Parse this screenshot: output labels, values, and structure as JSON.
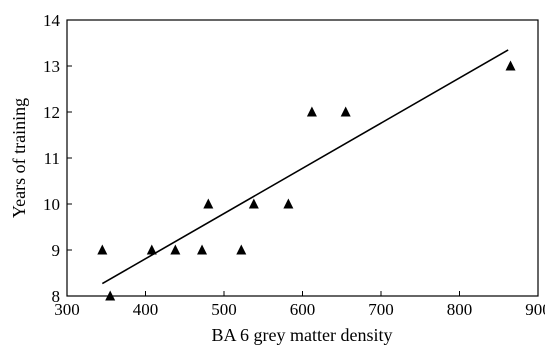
{
  "chart_data": {
    "type": "scatter",
    "title": "",
    "xlabel": "BA 6 grey matter density",
    "ylabel": "Years of training",
    "xlim": [
      300,
      900
    ],
    "ylim": [
      8,
      14
    ],
    "xticks": [
      300,
      400,
      500,
      600,
      700,
      800,
      900
    ],
    "yticks": [
      8,
      9,
      10,
      11,
      12,
      13,
      14
    ],
    "grid": false,
    "legend": "none",
    "marker": "triangle",
    "colors": {
      "marker": "#000000",
      "line": "#000000",
      "axis": "#000000"
    },
    "series": [
      {
        "points": [
          {
            "x": 345,
            "y": 9
          },
          {
            "x": 355,
            "y": 8
          },
          {
            "x": 408,
            "y": 9
          },
          {
            "x": 438,
            "y": 9
          },
          {
            "x": 472,
            "y": 9
          },
          {
            "x": 480,
            "y": 10
          },
          {
            "x": 522,
            "y": 9
          },
          {
            "x": 538,
            "y": 10
          },
          {
            "x": 582,
            "y": 10
          },
          {
            "x": 612,
            "y": 12
          },
          {
            "x": 655,
            "y": 12
          },
          {
            "x": 865,
            "y": 13
          }
        ]
      }
    ],
    "trend_line": {
      "x": [
        345,
        862
      ],
      "y": [
        8.27,
        13.35
      ]
    }
  }
}
